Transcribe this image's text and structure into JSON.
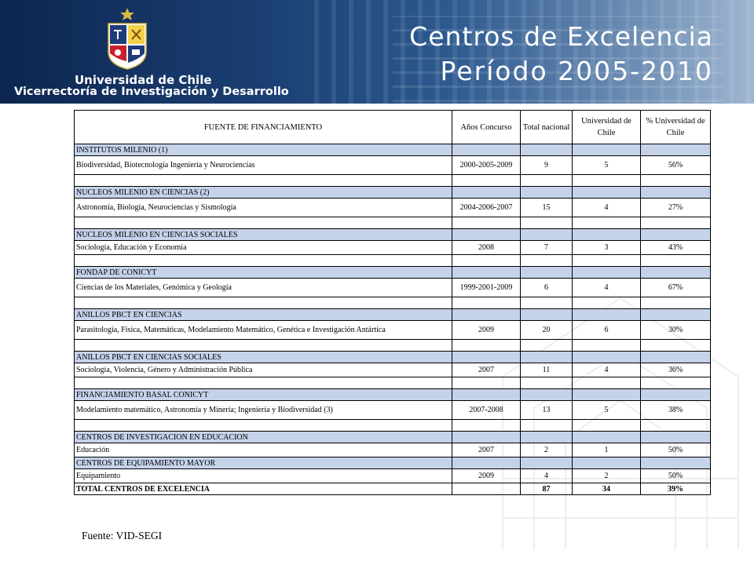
{
  "header": {
    "university": "Universidad de Chile",
    "subunit": "Vicerrectoría de Investigación y Desarrollo",
    "title_line1": "Centros de Excelencia",
    "title_line2": "Período 2005-2010"
  },
  "table": {
    "headers": [
      "FUENTE DE FINANCIAMIENTO",
      "Años Concurso",
      "Total nacional",
      "Universidad de Chile",
      "% Universidad de Chile"
    ],
    "rows": [
      {
        "type": "sec",
        "label": "INSTITUTOS MILENIO (1)"
      },
      {
        "type": "tall",
        "label": "Biodiversidad, Biotecnología Ingeniería y Neurociencias",
        "years": "2000-2005-2009",
        "total": "9",
        "uch": "5",
        "pct": "56%"
      },
      {
        "type": "sp"
      },
      {
        "type": "sec",
        "label": "NUCLEOS MILENIO EN CIENCIAS (2)"
      },
      {
        "type": "tall",
        "label": "Astronomía, Biología, Neurociencias y Sismología",
        "years": "2004-2006-2007",
        "total": "15",
        "uch": "4",
        "pct": "27%"
      },
      {
        "type": "sp"
      },
      {
        "type": "sec",
        "label": "NUCLEOS MILENIO EN CIENCIAS SOCIALES"
      },
      {
        "type": "row",
        "label": "Sociología, Educación y Economía",
        "years": "2008",
        "total": "7",
        "uch": "3",
        "pct": "43%"
      },
      {
        "type": "sp"
      },
      {
        "type": "sec",
        "label": "FONDAP DE CONICYT"
      },
      {
        "type": "tall",
        "label": "Ciencias de los Materiales, Genómica y Geología",
        "years": "1999-2001-2009",
        "total": "6",
        "uch": "4",
        "pct": "67%"
      },
      {
        "type": "sp"
      },
      {
        "type": "sec",
        "label": "ANILLOS PBCT EN CIENCIAS"
      },
      {
        "type": "tall",
        "label": "Parasitología, Física, Matemáticas, Modelamiento Matemático, Genética e Investigación Antártica",
        "years": "2009",
        "total": "20",
        "uch": "6",
        "pct": "30%"
      },
      {
        "type": "sp"
      },
      {
        "type": "sec",
        "label": "ANILLOS PBCT EN CIENCIAS SOCIALES"
      },
      {
        "type": "row",
        "label": "Sociología, Violencia, Género y Administración Pública",
        "years": "2007",
        "total": "11",
        "uch": "4",
        "pct": "36%"
      },
      {
        "type": "sp"
      },
      {
        "type": "sec",
        "label": "FINANCIAMIENTO BASAL CONICYT"
      },
      {
        "type": "tall",
        "label": "Modelamiento matemático, Astronomía y Minería; Ingeniería y Biodiversidad (3)",
        "years": "2007-2008",
        "total": "13",
        "uch": "5",
        "pct": "38%"
      },
      {
        "type": "sp"
      },
      {
        "type": "sec",
        "label": "CENTROS DE INVESTIGACION EN EDUCACION"
      },
      {
        "type": "row",
        "label": "Educación",
        "years": "2007",
        "total": "2",
        "uch": "1",
        "pct": "50%"
      },
      {
        "type": "sec",
        "label": "CENTROS DE EQUIPAMIENTO MAYOR"
      },
      {
        "type": "row",
        "label": "Equipamiento",
        "years": "2009",
        "total": "4",
        "uch": "2",
        "pct": "50%"
      },
      {
        "type": "total",
        "label": "TOTAL CENTROS DE EXCELENCIA",
        "years": "",
        "total": "87",
        "uch": "34",
        "pct": "39%"
      }
    ]
  },
  "source": "Fuente: VID-SEGI",
  "colors": {
    "header_dark": "#0d2650",
    "section_row": "#c5d3ea",
    "crest_blue": "#1f3c7a",
    "crest_red": "#c8202f"
  }
}
